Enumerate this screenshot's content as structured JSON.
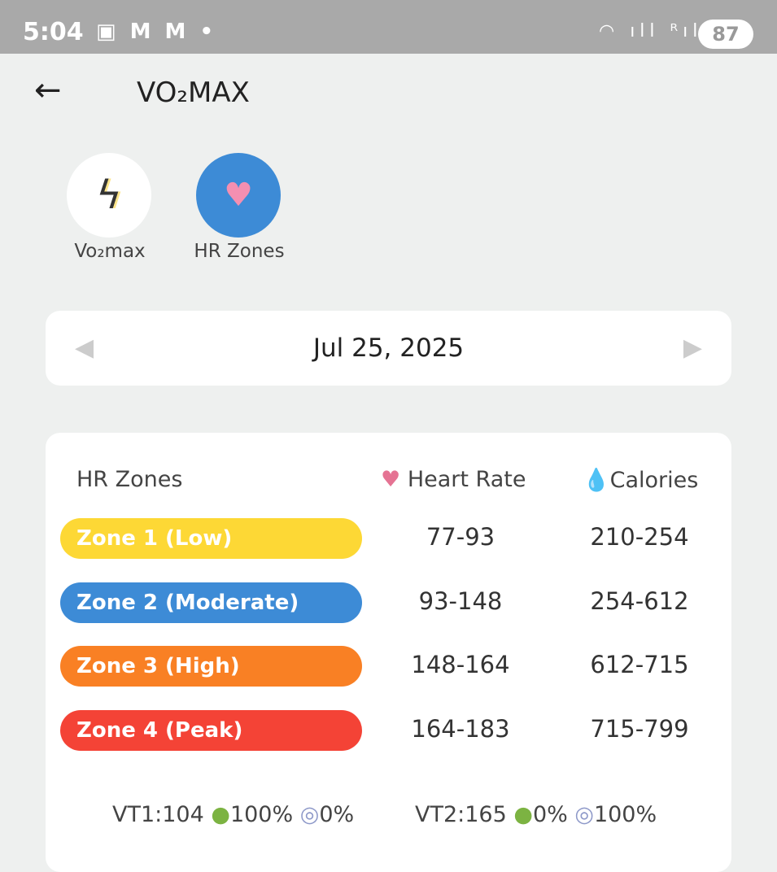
{
  "status_bar": {
    "time": "5:04",
    "notif_icons": "▣ M M •",
    "signal": "◠ ıll ᴿıll",
    "battery": "87"
  },
  "header": {
    "title": "VO₂MAX",
    "back_icon": "arrow-left-icon"
  },
  "tabs": [
    {
      "label": "Vo₂max",
      "icon": "lightning-icon",
      "active": false
    },
    {
      "label": "HR Zones",
      "icon": "heart-cycle-icon",
      "active": true,
      "color": "#3d8bd6"
    }
  ],
  "date_nav": {
    "date": "Jul 25, 2025",
    "prev": "◀",
    "next": "▶"
  },
  "table": {
    "headers": {
      "zones": "HR Zones",
      "heart_rate": "Heart Rate",
      "calories": "Calories"
    },
    "rows": [
      {
        "zone": "Zone 1 (Low)",
        "heart_rate": "77-93",
        "calories": "210-254",
        "color": "#fdd835"
      },
      {
        "zone": "Zone 2 (Moderate)",
        "heart_rate": "93-148",
        "calories": "254-612",
        "color": "#3d8bd6"
      },
      {
        "zone": "Zone 3 (High)",
        "heart_rate": "148-164",
        "calories": "612-715",
        "color": "#f98024"
      },
      {
        "zone": "Zone 4 (Peak)",
        "heart_rate": "164-183",
        "calories": "715-799",
        "color": "#f44336"
      }
    ]
  },
  "thresholds": {
    "vt1": {
      "label": "VT1:",
      "value": "104",
      "fat": "100%",
      "carb": "0%"
    },
    "vt2": {
      "label": "VT2:",
      "value": "165",
      "fat": "0%",
      "carb": "100%"
    }
  }
}
